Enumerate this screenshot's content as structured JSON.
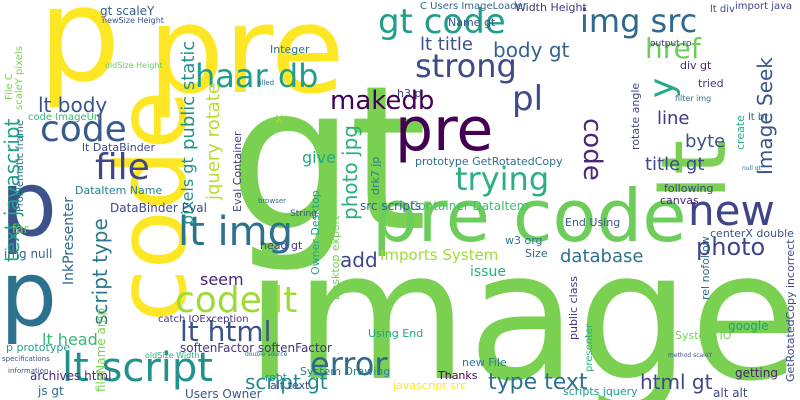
{
  "words": [
    {
      "text": "image",
      "color": "#7ad151"
    },
    {
      "text": "gt",
      "color": "#7ad151"
    },
    {
      "text": "pre code",
      "color": "#6ccd5a"
    },
    {
      "text": "pre",
      "color": "#440154"
    },
    {
      "text": "pre",
      "color": "#fde725"
    },
    {
      "text": "p",
      "color": "#fde725"
    },
    {
      "text": "code",
      "color": "#fde725"
    },
    {
      "text": "p",
      "color": "#3b528b"
    },
    {
      "text": "lt",
      "color": "#7ad151"
    },
    {
      "text": "code",
      "color": "#365c8d"
    },
    {
      "text": "file",
      "color": "#404688"
    },
    {
      "text": "lt img",
      "color": "#2c728e"
    },
    {
      "text": "code lt",
      "color": "#9fda3a"
    },
    {
      "text": "lt script",
      "color": "#21918c"
    },
    {
      "text": "img src",
      "color": "#31688e"
    },
    {
      "text": "strong",
      "color": "#3e4a89"
    },
    {
      "text": "haar db",
      "color": "#1f9e89"
    },
    {
      "text": "new",
      "color": "#414487"
    },
    {
      "text": "trying",
      "color": "#2ab07f"
    },
    {
      "text": "error",
      "color": "#31688e"
    },
    {
      "text": "lt html",
      "color": "#3b528b"
    },
    {
      "text": "href",
      "color": "#6ccd5a"
    },
    {
      "text": "makedb",
      "color": "#440154"
    },
    {
      "text": "code",
      "color": "#482878"
    },
    {
      "text": "gt code",
      "color": "#1f9e89"
    },
    {
      "text": "pl",
      "color": "#3e4a89"
    },
    {
      "text": "y",
      "color": "#22a884"
    },
    {
      "text": "lt body",
      "color": "#3b528b"
    },
    {
      "text": "body gt",
      "color": "#33638d"
    },
    {
      "text": "photo",
      "color": "#414487"
    },
    {
      "text": "database",
      "color": "#2c728e"
    },
    {
      "text": "type text",
      "color": "#2c728e"
    },
    {
      "text": "Image Seek",
      "color": "#39568c"
    },
    {
      "text": "lt title",
      "color": "#3b528b"
    },
    {
      "text": "line",
      "color": "#453781"
    },
    {
      "text": "byte",
      "color": "#3b528b"
    },
    {
      "text": "title gt",
      "color": "#3e4a89"
    },
    {
      "text": "script type",
      "color": "#2a788e"
    },
    {
      "text": "text javascript",
      "color": "#20a486"
    },
    {
      "text": "add",
      "color": "#3f4788"
    },
    {
      "text": "jquery rotate",
      "color": "#b5de2b"
    },
    {
      "text": "pixels gt",
      "color": "#21918c"
    },
    {
      "text": "public static",
      "color": "#21918c"
    },
    {
      "text": "photo jpg",
      "color": "#2ab07f"
    },
    {
      "text": "script gt",
      "color": "#238a8d"
    },
    {
      "text": "html gt",
      "color": "#3f4788"
    },
    {
      "text": "seem",
      "color": "#482575"
    },
    {
      "text": "give",
      "color": "#22a884"
    },
    {
      "text": "lt head",
      "color": "#35b779"
    },
    {
      "text": "Imports System",
      "color": "#a0da39"
    },
    {
      "text": "lt DataBinder",
      "color": "#3e4a89"
    },
    {
      "text": "InkPresenter",
      "color": "#31688e"
    },
    {
      "text": "gt scaleY",
      "color": "#355f8d"
    },
    {
      "text": "Eval Container",
      "color": "#433e85"
    },
    {
      "text": "prototype GetRotatedCopy",
      "color": "#2d718e"
    },
    {
      "text": "Container DataItem",
      "color": "#44bf70"
    },
    {
      "text": "src scripts",
      "color": "#33638d"
    },
    {
      "text": "DataItem Name",
      "color": "#26828e"
    },
    {
      "text": "DataBinder Eval",
      "color": "#3e4989"
    },
    {
      "text": "softenFactor softenFactor",
      "color": "#46337f"
    },
    {
      "text": "archives html",
      "color": "#472d7b"
    },
    {
      "text": "System Drawing",
      "color": "#25848e"
    },
    {
      "text": "Users Owner",
      "color": "#39568c"
    },
    {
      "text": "fileName amp",
      "color": "#7ad151"
    },
    {
      "text": "js gt",
      "color": "#31688e"
    },
    {
      "text": "javascript src",
      "color": "#fde725"
    },
    {
      "text": "scripts jquery",
      "color": "#1fa088"
    },
    {
      "text": "alt alt",
      "color": "#3e4a89"
    },
    {
      "text": "getting",
      "color": "#482173"
    },
    {
      "text": "google",
      "color": "#1f9e89"
    },
    {
      "text": "Thanks",
      "color": "#440154"
    },
    {
      "text": "new File",
      "color": "#2a788e"
    },
    {
      "text": "Size",
      "color": "#30697e"
    },
    {
      "text": "issue",
      "color": "#2ab07f"
    },
    {
      "text": "img null",
      "color": "#31688e"
    },
    {
      "text": "far",
      "color": "#6ccd5a"
    },
    {
      "text": "head gt",
      "color": "#433e85"
    },
    {
      "text": "alt text",
      "color": "#3e4a89"
    },
    {
      "text": "Using End",
      "color": "#20a486"
    },
    {
      "text": "End Using",
      "color": "#3b528b"
    },
    {
      "text": "w3 org",
      "color": "#2a788e"
    },
    {
      "text": "canvas",
      "color": "#482878"
    },
    {
      "text": "following",
      "color": "#414487"
    },
    {
      "text": "create",
      "color": "#2ab07f"
    },
    {
      "text": "centerX double",
      "color": "#3b528b"
    },
    {
      "text": "rel nofollow",
      "color": "#31688e"
    },
    {
      "text": "System IO",
      "color": "#75d054"
    },
    {
      "text": "GetRotatedCopy incorrect",
      "color": "#3e4a89"
    },
    {
      "text": "div gt",
      "color": "#482878"
    },
    {
      "text": "tried",
      "color": "#46337f"
    },
    {
      "text": "rotate angle",
      "color": "#3f4788"
    },
    {
      "text": "Name gt",
      "color": "#3b528b"
    },
    {
      "text": "Width Height",
      "color": "#46337f"
    },
    {
      "text": "C Users ImageLoader",
      "color": "#31688e"
    },
    {
      "text": "Integer",
      "color": "#2c728e"
    },
    {
      "text": "drk7 jp",
      "color": "#25848e"
    },
    {
      "text": "Owner Desktop",
      "color": "#20a486"
    },
    {
      "text": "Desktop export",
      "color": "#75d054"
    },
    {
      "text": "h3 p",
      "color": "#414487"
    },
    {
      "text": "code ImageUrl",
      "color": "#35b779"
    },
    {
      "text": "catch IOException",
      "color": "#46337f"
    },
    {
      "text": "Problematic frame",
      "color": "#2c728e"
    },
    {
      "text": "p prototype",
      "color": "#1fa088"
    },
    {
      "text": "root",
      "color": "#21918c"
    },
    {
      "text": "import java",
      "color": "#414487"
    },
    {
      "text": "lt br",
      "color": "#355f8d"
    },
    {
      "text": "lt div",
      "color": "#3e4a89"
    },
    {
      "text": "output ro",
      "color": "#46337f"
    },
    {
      "text": "x",
      "color": "#9fda3a"
    },
    {
      "text": "presenter",
      "color": "#2ab07f"
    },
    {
      "text": "public class",
      "color": "#46337f"
    },
    {
      "text": "oldSize Height",
      "color": "#6ccd5a"
    },
    {
      "text": "filter img",
      "color": "#2d708e"
    },
    {
      "text": "File C",
      "color": "#7ad151"
    },
    {
      "text": "scaleY pixels",
      "color": "#7ad151"
    },
    {
      "text": "String",
      "color": "#3b528b"
    },
    {
      "text": "newSize Height",
      "color": "#3b528b"
    },
    {
      "text": "filled",
      "color": "#31688e"
    },
    {
      "text": "browser",
      "color": "#31688e"
    },
    {
      "text": "double source",
      "color": "#2c728e"
    },
    {
      "text": "oldSize Width",
      "color": "#2ab07f"
    },
    {
      "text": "null gt",
      "color": "#2c728e"
    },
    {
      "text": "method scaleY",
      "color": "#3b528b"
    },
    {
      "text": "information",
      "color": "#3b528b"
    },
    {
      "text": "specifications",
      "color": "#3b528b"
    }
  ]
}
